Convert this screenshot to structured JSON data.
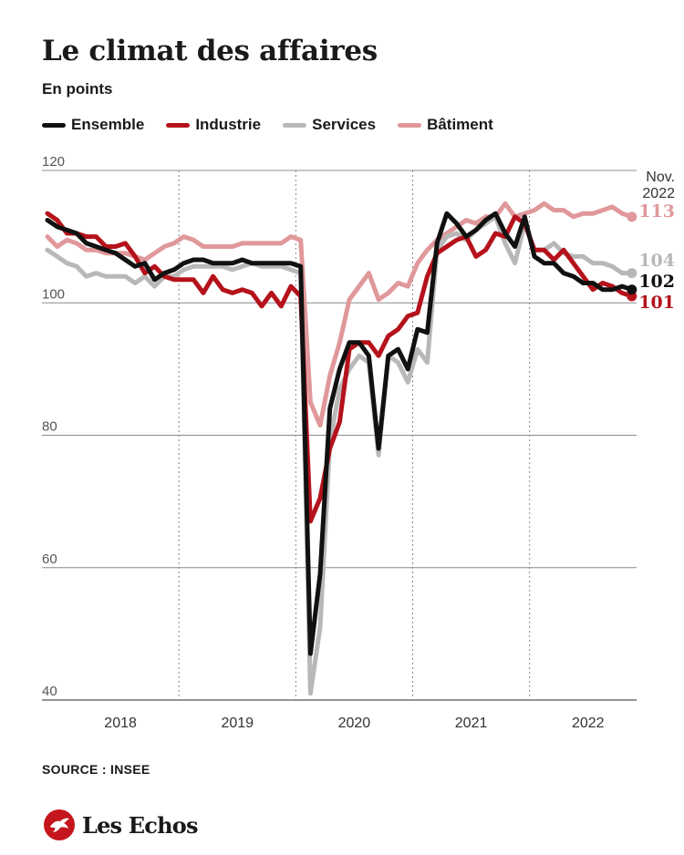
{
  "header": {
    "title": "Le climat des affaires",
    "subtitle": "En points"
  },
  "legend": [
    {
      "label": "Ensemble",
      "color": "#111111"
    },
    {
      "label": "Industrie",
      "color": "#b5121b"
    },
    {
      "label": "Services",
      "color": "#b8b8b8"
    },
    {
      "label": "Bâtiment",
      "color": "#e0989b"
    }
  ],
  "footer": {
    "source": "SOURCE : INSEE",
    "brand": "Les Echos",
    "brand_icon": "les-echos-eagle-icon"
  },
  "chart_data": {
    "type": "line",
    "x_unit": "month",
    "x_start": "2017-11",
    "x_end": "2022-11",
    "xticks": [
      "2018",
      "2019",
      "2020",
      "2021",
      "2022"
    ],
    "ylim": [
      40,
      120
    ],
    "yticks": [
      40,
      60,
      80,
      100,
      120
    ],
    "grid": "horizontal",
    "year_separators": true,
    "legend_position": "top",
    "end_label_header": [
      "Nov.",
      "2022"
    ],
    "series": [
      {
        "name": "Bâtiment",
        "color": "#e0989b",
        "end_label": "113",
        "values": [
          110,
          108.5,
          109.5,
          109,
          108,
          108,
          107.5,
          107.5,
          107.5,
          107,
          106.5,
          107.5,
          108.5,
          109,
          110,
          109.5,
          108.5,
          108.5,
          108.5,
          108.5,
          109,
          109,
          109,
          109,
          109,
          110,
          109.5,
          85,
          81.5,
          89,
          94,
          100.5,
          102.5,
          104.5,
          100.5,
          101.5,
          103,
          102.5,
          106,
          108,
          109.5,
          110.5,
          111.5,
          112.5,
          112,
          113,
          113,
          115,
          113,
          113.5,
          114,
          115,
          114,
          114,
          113,
          113.5,
          113.5,
          114,
          114.5,
          113.5,
          113
        ]
      },
      {
        "name": "Services",
        "color": "#b8b8b8",
        "end_label": "104",
        "values": [
          108,
          107,
          106,
          105.5,
          104,
          104.5,
          104,
          104,
          104,
          103,
          104,
          102.5,
          104,
          104,
          105,
          105.5,
          105.5,
          105.5,
          105.5,
          105,
          105.5,
          106,
          105.5,
          105.5,
          105.5,
          105,
          104.5,
          41,
          51,
          79,
          87,
          90,
          92,
          91,
          77,
          92,
          91,
          88,
          93,
          91,
          108,
          110,
          110.5,
          109.5,
          111,
          112,
          113,
          109,
          106,
          112,
          108,
          108,
          109,
          107.5,
          107,
          107,
          106,
          106,
          105.5,
          104.5,
          104.5
        ]
      },
      {
        "name": "Industrie",
        "color": "#b5121b",
        "end_label": "101",
        "values": [
          113.5,
          112.5,
          110.5,
          110.5,
          110,
          110,
          108.5,
          108.5,
          109,
          107,
          104.5,
          105.5,
          104,
          103.5,
          103.5,
          103.5,
          101.5,
          104,
          102,
          101.5,
          102,
          101.5,
          99.5,
          101.5,
          99.5,
          102.5,
          101,
          67,
          70.5,
          78,
          82,
          93,
          94,
          94,
          92,
          95,
          96,
          98,
          98.5,
          104,
          107.5,
          108.5,
          109.5,
          110,
          107,
          108,
          110.5,
          110,
          113,
          112,
          108,
          108,
          106.5,
          108,
          106,
          104,
          102,
          103,
          102.5,
          101.5,
          101
        ]
      },
      {
        "name": "Ensemble",
        "color": "#111111",
        "end_label": "102",
        "values": [
          112.5,
          111.5,
          111,
          110.5,
          109,
          108.5,
          108,
          107.5,
          106.5,
          105.5,
          106,
          103.5,
          104.5,
          105,
          106,
          106.5,
          106.5,
          106,
          106,
          106,
          106.5,
          106,
          106,
          106,
          106,
          106,
          105.5,
          47,
          59,
          84,
          90,
          94,
          94,
          92,
          78,
          92,
          93,
          90,
          96,
          95.5,
          109,
          113.5,
          112,
          110,
          111,
          112.5,
          113.5,
          110.5,
          108.5,
          113,
          107,
          106,
          106,
          104.5,
          104,
          103,
          103,
          102,
          102,
          102.5,
          102
        ]
      }
    ]
  }
}
